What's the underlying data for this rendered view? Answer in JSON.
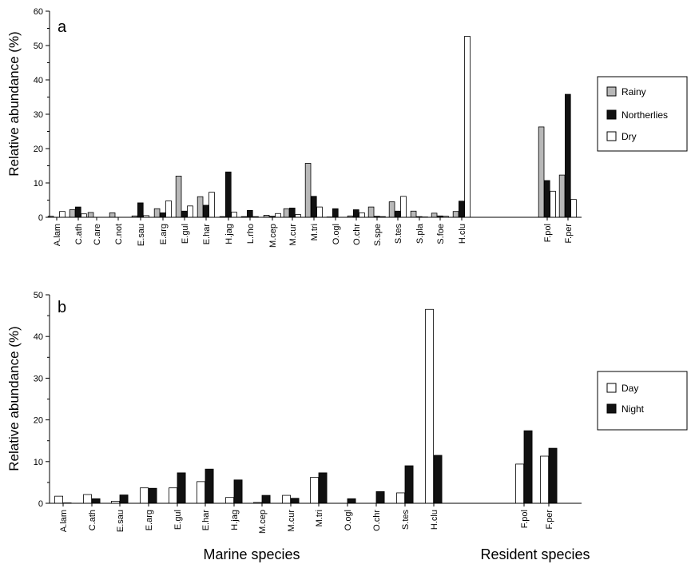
{
  "chart_data": [
    {
      "type": "bar",
      "panel": "a",
      "ylabel": "Relative abundance (%)",
      "xlabel": "",
      "ylim": [
        0,
        60
      ],
      "yticks": [
        0,
        10,
        20,
        30,
        40,
        50,
        60
      ],
      "ytick_labels": [
        "0",
        "10",
        "20",
        "30",
        "40",
        "50",
        "60"
      ],
      "grid": false,
      "legend_position": "right",
      "categories": [
        "A.lam",
        "C.ath",
        "C.are",
        "C.not",
        "E.sau",
        "E.arg",
        "E.gul",
        "E.har",
        "H.jag",
        "L.rho",
        "M.cep",
        "M.cur",
        "M.tri",
        "O.ogl",
        "O.chr",
        "S.spe",
        "S.tes",
        "S.pla",
        "S.foe",
        "H.clu",
        "F.pol",
        "F.per"
      ],
      "series": [
        {
          "name": "Rainy",
          "color": "#b8b8b8",
          "values": [
            0.3,
            2.2,
            1.4,
            1.3,
            0.4,
            2.5,
            12.0,
            6.0,
            0.2,
            0.2,
            0.6,
            2.5,
            15.7,
            0.1,
            0.4,
            3.0,
            4.5,
            1.8,
            1.2,
            1.7,
            26.3,
            12.3
          ]
        },
        {
          "name": "Northerlies",
          "color": "#111111",
          "values": [
            0.0,
            3.0,
            0.0,
            0.0,
            4.2,
            1.3,
            1.8,
            3.5,
            13.2,
            2.0,
            0.3,
            2.7,
            6.1,
            2.5,
            2.2,
            0.3,
            1.8,
            0.2,
            0.4,
            4.7,
            10.7,
            35.8
          ]
        },
        {
          "name": "Dry",
          "color": "#ffffff",
          "values": [
            1.7,
            1.0,
            0.0,
            0.0,
            0.5,
            4.8,
            3.3,
            7.3,
            1.5,
            0.2,
            1.1,
            0.8,
            3.0,
            0.0,
            1.3,
            0.2,
            6.1,
            0.1,
            0.3,
            52.7,
            7.6,
            5.2
          ]
        }
      ]
    },
    {
      "type": "bar",
      "panel": "b",
      "ylabel": "Relative abundance (%)",
      "xlabel": "",
      "ylim": [
        0,
        50
      ],
      "yticks": [
        0,
        10,
        20,
        30,
        40,
        50
      ],
      "ytick_labels": [
        "0",
        "10",
        "20",
        "30",
        "40",
        "50"
      ],
      "grid": false,
      "legend_position": "right",
      "categories": [
        "A.lam",
        "C.ath",
        "E.sau",
        "E.arg",
        "E.gul",
        "E.har",
        "H.jag",
        "M.cep",
        "M.cur",
        "M.tri",
        "O.ogl",
        "O.chr",
        "S.tes",
        "H.clu",
        "F.pol",
        "F.per"
      ],
      "series": [
        {
          "name": "Day",
          "color": "#ffffff",
          "values": [
            1.7,
            2.1,
            0.5,
            3.7,
            3.7,
            5.2,
            1.4,
            0.2,
            1.9,
            6.2,
            0.0,
            0.0,
            2.5,
            46.5,
            9.4,
            11.3
          ]
        },
        {
          "name": "Night",
          "color": "#111111",
          "values": [
            0.1,
            1.1,
            2.0,
            3.6,
            7.3,
            8.2,
            5.6,
            1.9,
            1.2,
            7.3,
            1.1,
            2.8,
            9.0,
            11.5,
            17.4,
            13.2
          ]
        }
      ]
    }
  ],
  "group_labels": {
    "marine": "Marine species",
    "resident": "Resident species"
  }
}
